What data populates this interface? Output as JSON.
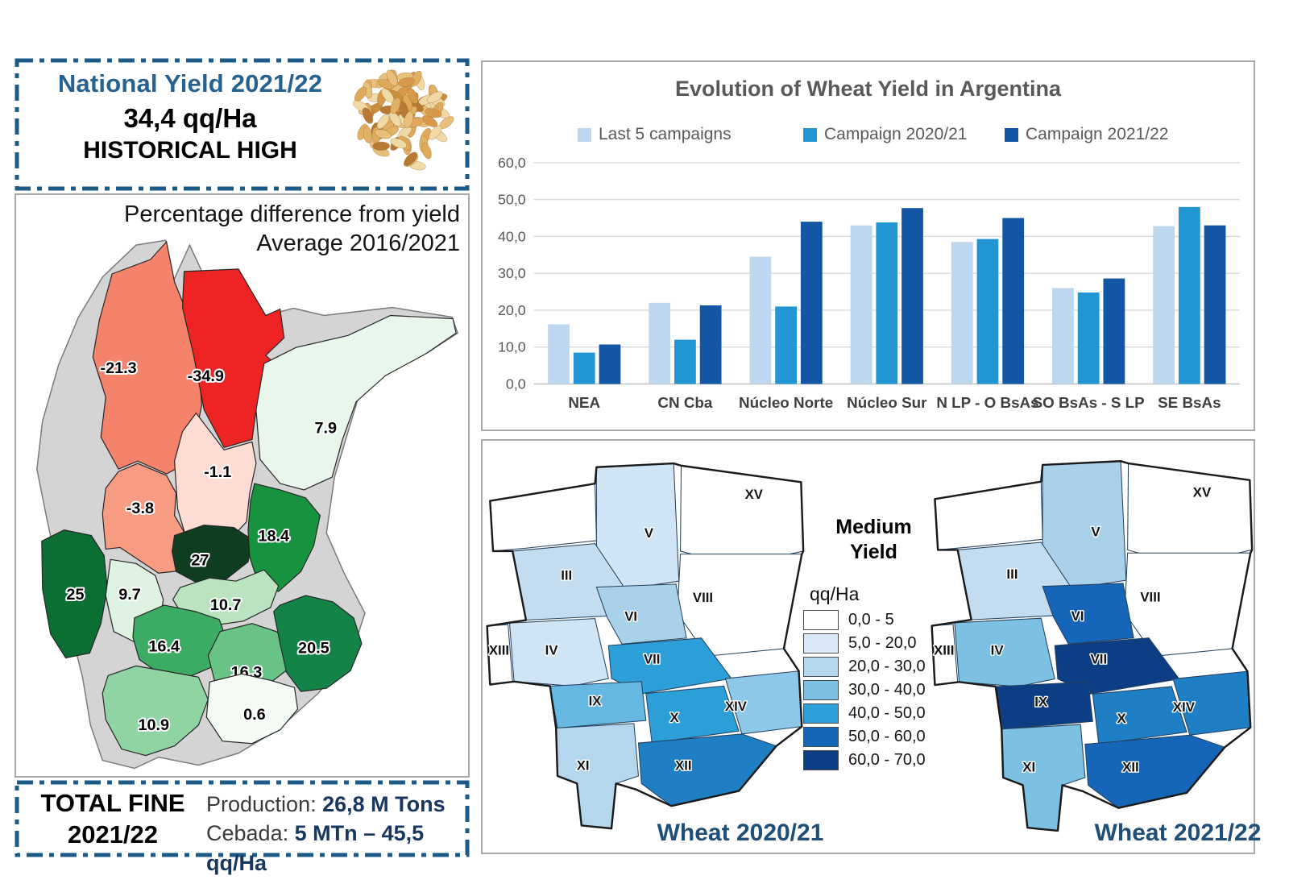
{
  "national_box": {
    "title": "National Yield 2021/22",
    "value": "34,4 qq/Ha",
    "subtitle": "HISTORICAL HIGH"
  },
  "total_box": {
    "title_line1": "TOTAL FINE",
    "title_line2": "2021/22",
    "production_label": "Production:",
    "production_value": "26,8 M Tons",
    "cebada_label": "Cebada:",
    "cebada_value": "5 MTn – 45,5 qq/Ha"
  },
  "diff_map": {
    "title_line1": "Percentage difference from yield",
    "title_line2": "Average 2016/2021",
    "base_color": "#d4d4d4",
    "regions": [
      {
        "label": "-21.3",
        "color": "#f5826b"
      },
      {
        "label": "-34.9",
        "color": "#ee2424"
      },
      {
        "label": "7.9",
        "color": "#e9f6ec"
      },
      {
        "label": "-1.1",
        "color": "#fcdcd3"
      },
      {
        "label": "-3.8",
        "color": "#f79b82"
      },
      {
        "label": "27",
        "color": "#0e3d20"
      },
      {
        "label": "18.4",
        "color": "#17933f"
      },
      {
        "label": "25",
        "color": "#0b6e33"
      },
      {
        "label": "9.7",
        "color": "#ddf2e0"
      },
      {
        "label": "10.7",
        "color": "#b9e4bf"
      },
      {
        "label": "16.4",
        "color": "#3cab64"
      },
      {
        "label": "16.3",
        "color": "#67c386"
      },
      {
        "label": "20.5",
        "color": "#148347"
      },
      {
        "label": "10.9",
        "color": "#90d4a4"
      },
      {
        "label": "0.6",
        "color": "#f3fbf4"
      }
    ]
  },
  "chart_data": {
    "type": "bar",
    "title": "Evolution of Wheat Yield in Argentina",
    "categories": [
      "NEA",
      "CN Cba",
      "Núcleo Norte",
      "Núcleo Sur",
      "N LP - O BsAs",
      "SO BsAs - S LP",
      "SE BsAs"
    ],
    "series": [
      {
        "name": "Last 5 campaigns",
        "color": "#bdd7ee",
        "values": [
          16.2,
          22.0,
          34.5,
          43.0,
          38.5,
          26.0,
          42.8
        ]
      },
      {
        "name": "Campaign 2020/21",
        "color": "#2196d3",
        "values": [
          8.5,
          12.0,
          21.0,
          43.8,
          39.3,
          24.8,
          48.0
        ]
      },
      {
        "name": "Campaign 2021/22",
        "color": "#1256a4",
        "values": [
          10.7,
          21.3,
          44.0,
          47.7,
          45.0,
          28.6,
          43.0
        ]
      }
    ],
    "ylabel": "",
    "xlabel": "",
    "ylim": [
      0,
      60
    ],
    "ytick_step": 10,
    "ytick_labels": [
      "0,0",
      "10,0",
      "20,0",
      "30,0",
      "40,0",
      "50,0",
      "60,0"
    ],
    "grid": true,
    "legend_position": "top"
  },
  "yield_maps": {
    "legend_title_line1": "Medium",
    "legend_title_line2": "Yield",
    "legend_unit": "qq/Ha",
    "legend_items": [
      {
        "range": "0,0 - 5",
        "color": "#ffffff"
      },
      {
        "range": "5,0 - 20,0",
        "color": "#d9e8f7"
      },
      {
        "range": "20,0 - 30,0",
        "color": "#b5d7ee"
      },
      {
        "range": "30,0 - 40,0",
        "color": "#7cc0e2"
      },
      {
        "range": "40,0 - 50,0",
        "color": "#2d9fd8"
      },
      {
        "range": "50,0 - 60,0",
        "color": "#1566b8"
      },
      {
        "range": "60,0 - 70,0",
        "color": "#0d3d85"
      }
    ],
    "zone_labels": [
      "XV",
      "V",
      "III",
      "VIII",
      "VI",
      "IV",
      "XIII",
      "VII",
      "IX",
      "X",
      "XIV",
      "XI",
      "XII"
    ],
    "maps": [
      {
        "caption": "Wheat 2020/21",
        "zones": {
          "NW": "#ffffff",
          "XV": "#ffffff",
          "V": "#cfe4f4",
          "III": "#c3dcf0",
          "VIII": "#ffffff",
          "VI": "#a9d1ea",
          "IV": "#cfe4f4",
          "XIII": "#ffffff",
          "VII": "#2d9fd8",
          "IX": "#66b8e2",
          "X": "#2d9fd8",
          "XIV": "#8ec8e8",
          "XI": "#b5d7ee",
          "XII": "#1f7fc4"
        }
      },
      {
        "caption": "Wheat 2021/22",
        "zones": {
          "NW": "#ffffff",
          "XV": "#ffffff",
          "V": "#a9d1ea",
          "III": "#c3dcf0",
          "VIII": "#ffffff",
          "VI": "#1566b8",
          "IV": "#7cc0e2",
          "XIII": "#ffffff",
          "VII": "#0d3d85",
          "IX": "#0d3d85",
          "X": "#1f7fc4",
          "XIV": "#1f7fc4",
          "XI": "#7cc0e2",
          "XII": "#1566b8"
        }
      }
    ]
  }
}
